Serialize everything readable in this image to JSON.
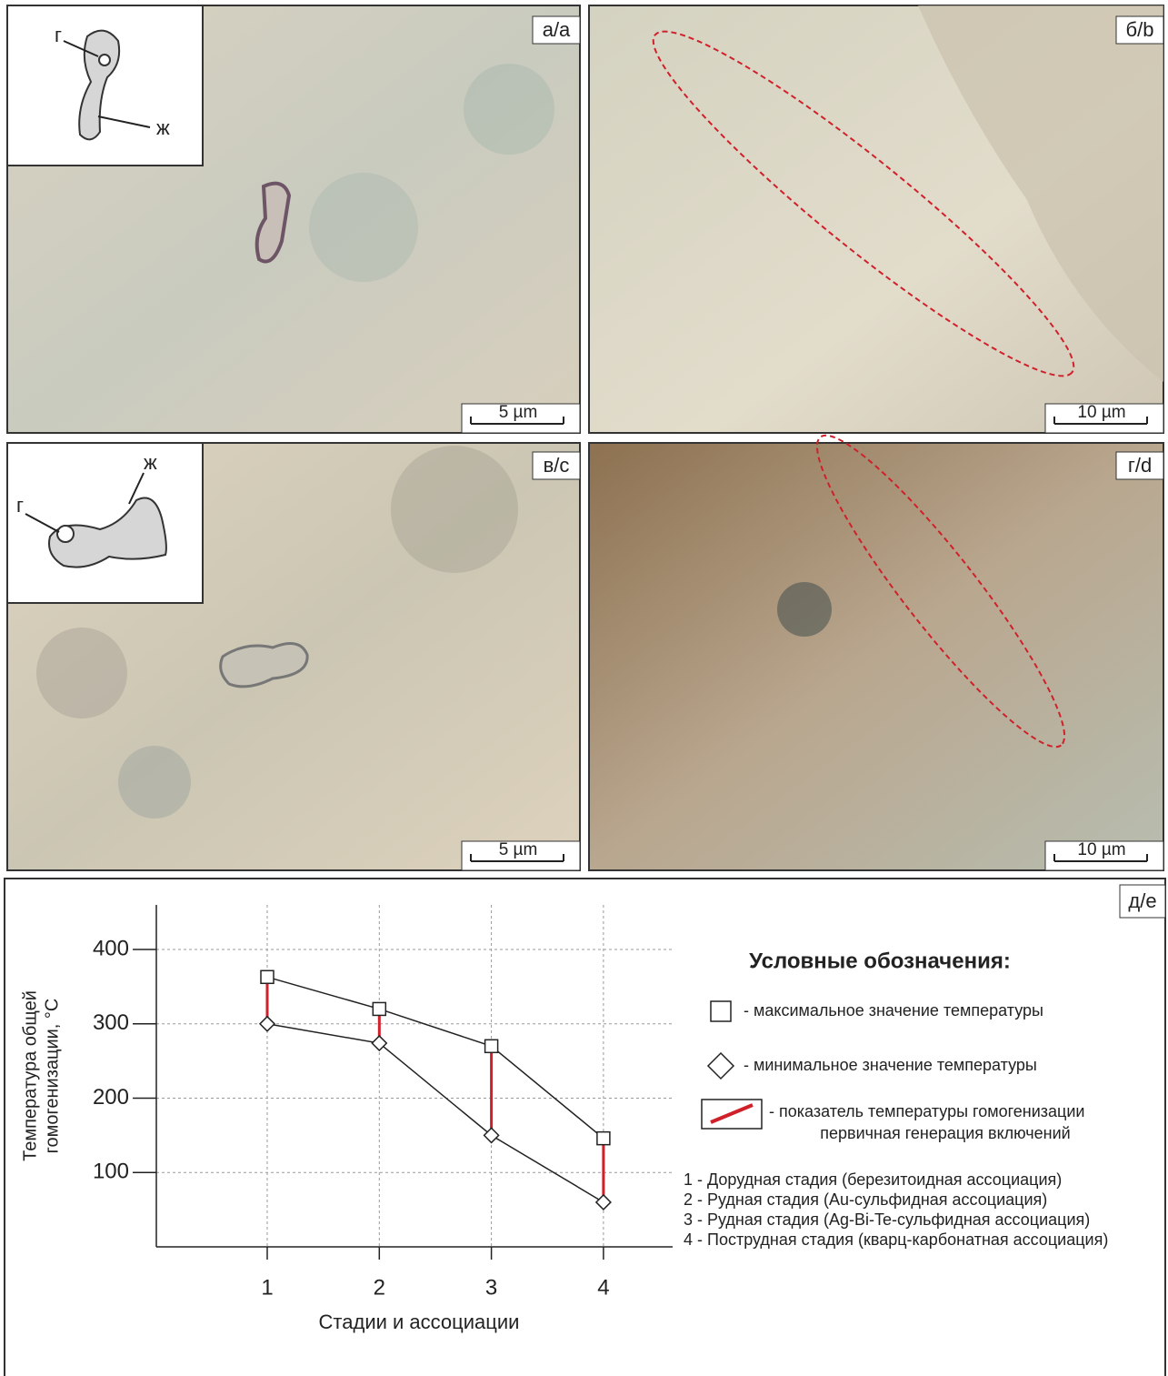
{
  "panels": [
    {
      "label": "а/a",
      "scale": "5 µm",
      "inset": [
        "г",
        "ж"
      ]
    },
    {
      "label": "б/b",
      "scale": "10 µm"
    },
    {
      "label": "в/c",
      "scale": "5 µm",
      "inset": [
        "г",
        "ж"
      ]
    },
    {
      "label": "г/d",
      "scale": "10 µm"
    }
  ],
  "chart_data": {
    "type": "line",
    "panel_label": "д/е",
    "y_label": [
      "Температура общей",
      "гомогенизации, °C"
    ],
    "x_label": "Стадии и ассоциации",
    "categories": [
      "1",
      "2",
      "3",
      "4"
    ],
    "series": [
      {
        "name": "- максимальное значение температуры",
        "marker": "square",
        "color": "#222222",
        "values": [
          363,
          320,
          270,
          146
        ]
      },
      {
        "name": "- минимальное значение температуры",
        "marker": "diamond",
        "color": "#222222",
        "values": [
          300,
          274,
          150,
          60
        ]
      }
    ],
    "range_color": "#d0202a",
    "range_legend": [
      "- показатель температуры гомогенизации",
      "первичная генерация включений"
    ],
    "legend_title": "Условные обозначения:",
    "stage_notes": [
      "1 - Дорудная стадия (березитоидная ассоциация)",
      "2 - Рудная стадия (Au-сульфидная ассоциация)",
      "3 - Рудная стадия (Ag-Bi-Te-сульфидная ассоциация)",
      "4 - Пострудная стадия (кварц-карбонатная ассоциация)"
    ],
    "ylim": [
      0,
      460
    ],
    "yticks": [
      100,
      200,
      300,
      400
    ],
    "grid": true
  }
}
